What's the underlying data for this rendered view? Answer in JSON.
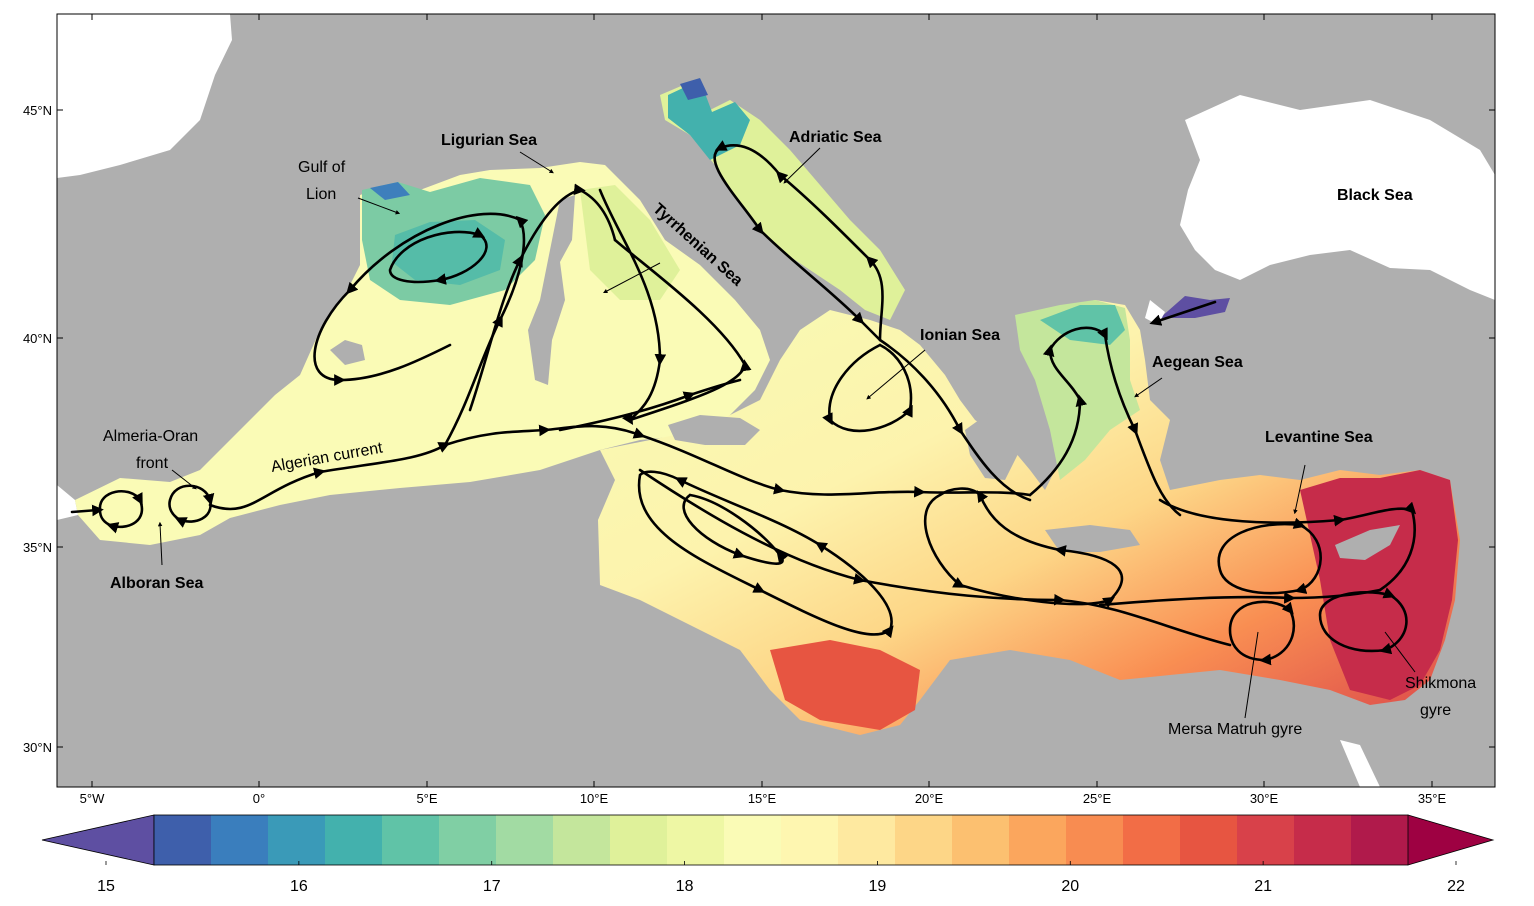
{
  "axes": {
    "lon_ticks": [
      "5°W",
      "0°",
      "5°E",
      "10°E",
      "15°E",
      "20°E",
      "25°E",
      "30°E",
      "35°E"
    ],
    "lat_ticks": [
      "45°N",
      "40°N",
      "35°N",
      "30°N"
    ]
  },
  "colorbar": {
    "tick_labels": [
      "15",
      "16",
      "17",
      "18",
      "19",
      "20",
      "21",
      "22"
    ],
    "min": 15,
    "max": 22,
    "step": 0.25,
    "extend": "both",
    "colors": [
      "#5e4fa2",
      "#3e5fab",
      "#3a7ebd",
      "#3a9ab8",
      "#43b1ad",
      "#60c3a7",
      "#80cfa4",
      "#a2dba3",
      "#c4e69c",
      "#dff19a",
      "#eef7a4",
      "#fafbb6",
      "#fef6b0",
      "#fee9a0",
      "#fdd687",
      "#fcc070",
      "#fba65d",
      "#f88c51",
      "#f26d46",
      "#e75541",
      "#d8414a",
      "#c62c4a",
      "#b01a4b",
      "#9e0142"
    ]
  },
  "labels": {
    "ligurian": "Ligurian Sea",
    "gulf_lion_1": "Gulf of",
    "gulf_lion_2": "Lion",
    "adriatic": "Adriatic Sea",
    "black": "Black Sea",
    "tyrrhenian": "Tyrrhenian Sea",
    "ionian": "Ionian Sea",
    "aegean": "Aegean Sea",
    "levantine": "Levantine Sea",
    "almeria_1": "Almeria-Oran",
    "almeria_2": "front",
    "algerian": "Algerian current",
    "alboran": "Alboran Sea",
    "mersa": "Mersa Matruh gyre",
    "shikmona_1": "Shikmona",
    "shikmona_2": "gyre"
  }
}
